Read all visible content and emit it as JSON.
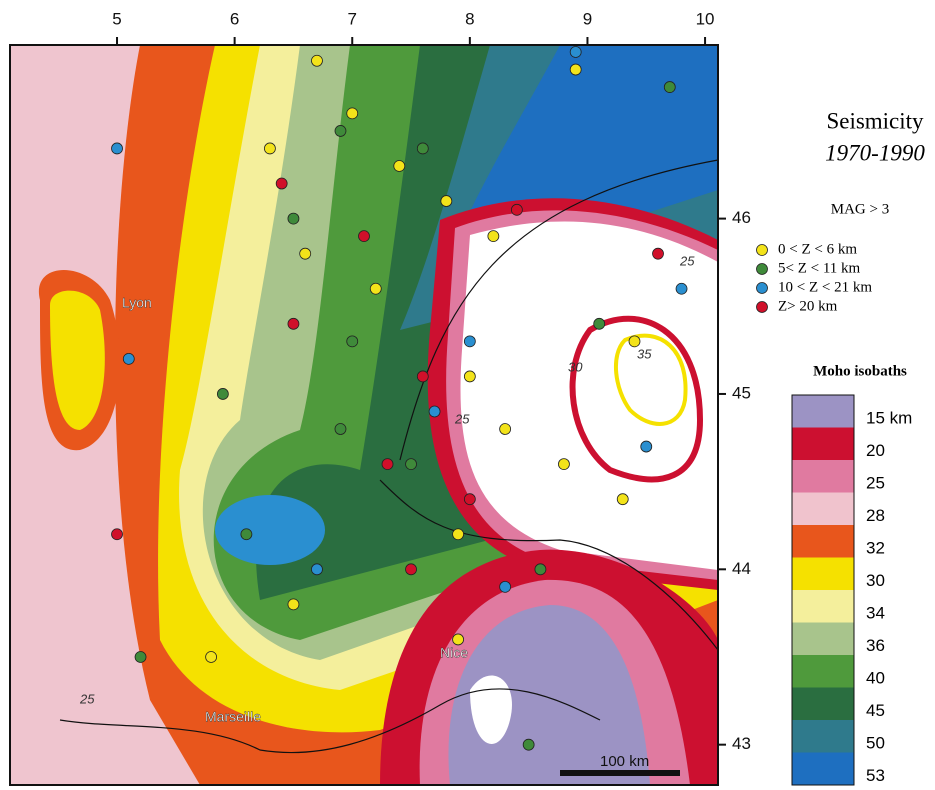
{
  "title": "Seismicity",
  "period": "1970-1990",
  "magnitude": "MAG > 3",
  "map": {
    "xlim": [
      4.09,
      10.11
    ],
    "ylim": [
      42.77,
      46.99
    ],
    "xticks": [
      5,
      6,
      7,
      8,
      9,
      10
    ],
    "yticks": [
      46,
      45,
      44,
      43
    ],
    "places": [
      "Lyon",
      "Marseille",
      "Nice"
    ],
    "scale_bar": "100 km",
    "contour_labels": [
      "25",
      "30",
      "35",
      "25",
      "25"
    ]
  },
  "depth_legend": [
    {
      "label": "0 < Z < 6 km",
      "color": "#f3e31a",
      "quakes": [
        [
          7.0,
          46.6
        ],
        [
          7.4,
          46.3
        ],
        [
          7.8,
          46.1
        ],
        [
          8.2,
          45.9
        ],
        [
          6.6,
          45.8
        ],
        [
          7.2,
          45.6
        ],
        [
          6.3,
          46.4
        ],
        [
          8.9,
          46.85
        ],
        [
          9.4,
          45.3
        ],
        [
          8.3,
          44.8
        ],
        [
          8.8,
          44.6
        ],
        [
          7.9,
          44.2
        ],
        [
          6.5,
          43.8
        ],
        [
          5.8,
          43.5
        ],
        [
          7.9,
          43.6
        ],
        [
          9.3,
          44.4
        ],
        [
          6.7,
          46.9
        ],
        [
          8.0,
          45.1
        ]
      ]
    },
    {
      "label": "5< Z < 11 km",
      "color": "#3f8a3a",
      "quakes": [
        [
          6.9,
          46.5
        ],
        [
          7.6,
          46.4
        ],
        [
          6.5,
          46.0
        ],
        [
          7.0,
          45.3
        ],
        [
          5.9,
          45.0
        ],
        [
          6.1,
          44.2
        ],
        [
          5.2,
          43.5
        ],
        [
          7.5,
          44.6
        ],
        [
          8.6,
          44.0
        ],
        [
          9.7,
          46.75
        ],
        [
          8.5,
          43.0
        ],
        [
          6.9,
          44.8
        ],
        [
          9.1,
          45.4
        ]
      ]
    },
    {
      "label": "10 < Z < 21 km",
      "color": "#2a8fd0",
      "quakes": [
        [
          5.0,
          46.4
        ],
        [
          5.1,
          45.2
        ],
        [
          8.0,
          45.3
        ],
        [
          7.7,
          44.9
        ],
        [
          9.8,
          45.6
        ],
        [
          8.3,
          43.9
        ],
        [
          6.7,
          44.0
        ],
        [
          9.5,
          44.7
        ],
        [
          8.9,
          46.95
        ]
      ]
    },
    {
      "label": "Z> 20 km",
      "color": "#d0102a",
      "quakes": [
        [
          7.1,
          45.9
        ],
        [
          6.4,
          46.2
        ],
        [
          7.6,
          45.1
        ],
        [
          7.3,
          44.6
        ],
        [
          8.0,
          44.4
        ],
        [
          5.0,
          44.2
        ],
        [
          8.4,
          46.05
        ],
        [
          9.6,
          45.8
        ],
        [
          6.5,
          45.4
        ],
        [
          7.5,
          44.0
        ]
      ]
    }
  ],
  "moho_title": "Moho isobaths",
  "moho_scale": [
    {
      "label": "15 km",
      "color": "#9c93c4"
    },
    {
      "label": "20",
      "color": "#cc1030"
    },
    {
      "label": "25",
      "color": "#e07aa0"
    },
    {
      "label": "28",
      "color": "#f0c3cd"
    },
    {
      "label": "32",
      "color": "#e8561c"
    },
    {
      "label": "30",
      "color": "#f5e100"
    },
    {
      "label": "34",
      "color": "#f4ef9c"
    },
    {
      "label": "36",
      "color": "#a8c48c"
    },
    {
      "label": "40",
      "color": "#4f9a3c"
    },
    {
      "label": "45",
      "color": "#2a6e40"
    },
    {
      "label": "50",
      "color": "#2f7a8c"
    },
    {
      "label": "53",
      "color": "#1e6fc0"
    }
  ]
}
